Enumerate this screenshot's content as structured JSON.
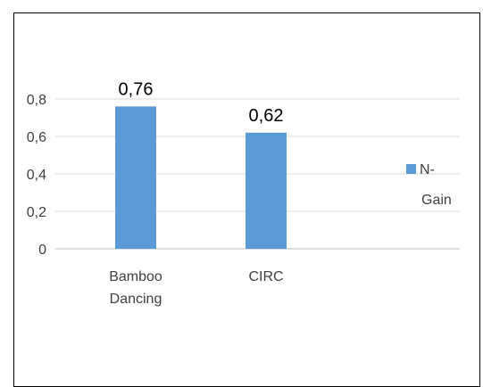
{
  "chart_data": {
    "type": "bar",
    "categories": [
      [
        "Bamboo",
        "Dancing"
      ],
      [
        "CIRC"
      ]
    ],
    "series": [
      {
        "name": "N-Gain",
        "values": [
          0.76,
          0.62
        ],
        "color": "#5b9bd5"
      }
    ],
    "data_labels": [
      "0,76",
      "0,62"
    ],
    "yticks": [
      "0",
      "0,2",
      "0,4",
      "0,6",
      "0,8"
    ],
    "ytick_values": [
      0,
      0.2,
      0.4,
      0.6,
      0.8
    ],
    "ylim": [
      0,
      0.8
    ],
    "grid": true,
    "legend": {
      "position": "right",
      "label_lines": [
        "N-",
        "Gain"
      ]
    },
    "title": "",
    "xlabel": "",
    "ylabel": ""
  }
}
